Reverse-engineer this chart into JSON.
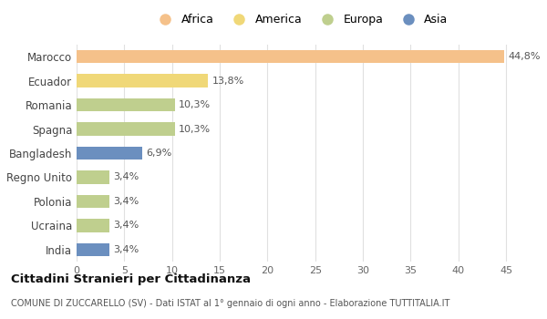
{
  "categories": [
    "Marocco",
    "Ecuador",
    "Romania",
    "Spagna",
    "Bangladesh",
    "Regno Unito",
    "Polonia",
    "Ucraina",
    "India"
  ],
  "values": [
    44.8,
    13.8,
    10.3,
    10.3,
    6.9,
    3.4,
    3.4,
    3.4,
    3.4
  ],
  "labels": [
    "44,8%",
    "13,8%",
    "10,3%",
    "10,3%",
    "6,9%",
    "3,4%",
    "3,4%",
    "3,4%",
    "3,4%"
  ],
  "colors": [
    "#F5C18A",
    "#F0D878",
    "#BFCF8E",
    "#BFCF8E",
    "#6B8FBF",
    "#BFCF8E",
    "#BFCF8E",
    "#BFCF8E",
    "#6B8FBF"
  ],
  "legend": [
    {
      "label": "Africa",
      "color": "#F5C18A"
    },
    {
      "label": "America",
      "color": "#F0D878"
    },
    {
      "label": "Europa",
      "color": "#BFCF8E"
    },
    {
      "label": "Asia",
      "color": "#6B8FBF"
    }
  ],
  "xlim": [
    0,
    47
  ],
  "xticks": [
    0,
    5,
    10,
    15,
    20,
    25,
    30,
    35,
    40,
    45
  ],
  "title": "Cittadini Stranieri per Cittadinanza",
  "subtitle": "COMUNE DI ZUCCARELLO (SV) - Dati ISTAT al 1° gennaio di ogni anno - Elaborazione TUTTITALIA.IT",
  "background_color": "#ffffff",
  "grid_color": "#e0e0e0",
  "bar_height": 0.55,
  "label_fontsize": 8,
  "ytick_fontsize": 8.5,
  "xtick_fontsize": 8
}
